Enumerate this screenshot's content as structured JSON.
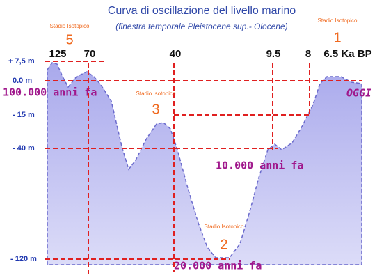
{
  "title": "Curva di oscillazione del livello marino",
  "subtitle": "(finestra temporale Pleistocene sup.- Olocene)",
  "y_labels": [
    "+ 7,5 m",
    "0.0 m",
    "- 15 m",
    "- 40 m",
    "- 120 m"
  ],
  "time_labels": [
    "125",
    "70",
    "40",
    "9.5",
    "8",
    "6.5 Ka BP"
  ],
  "stages": [
    {
      "label": "Stadio Isotopico",
      "number": "5"
    },
    {
      "label": "Stadio Isotopico",
      "number": "1"
    },
    {
      "label": "Stadio Isotopico",
      "number": "3"
    },
    {
      "label": "Stadio Isotopico",
      "number": "2"
    }
  ],
  "annotations": [
    "100.000 anni fa",
    "OGGI",
    "10.000 anni fa",
    "20.000 anni fa"
  ]
}
